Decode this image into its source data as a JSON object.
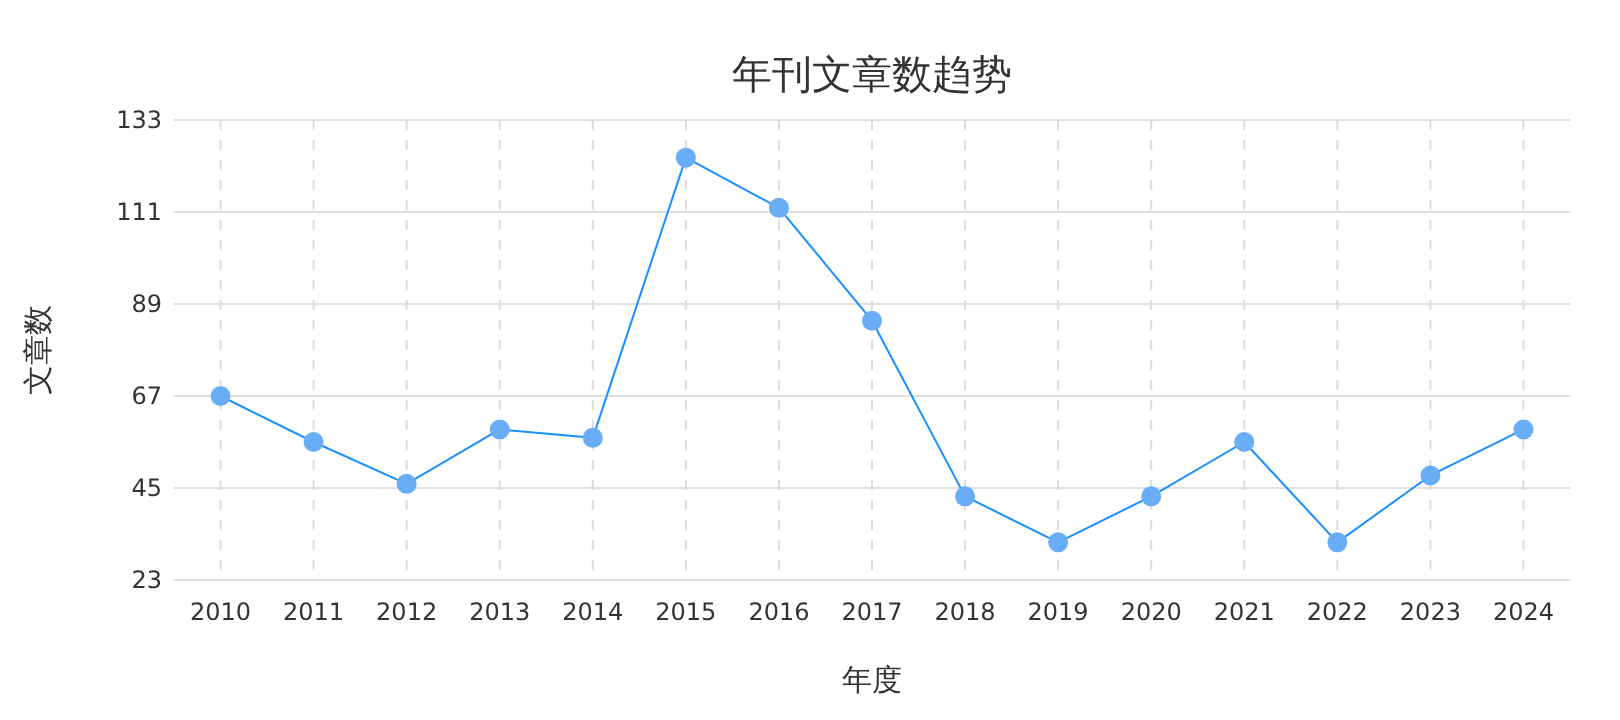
{
  "chart_data": {
    "type": "line",
    "title": "年刊文章数趋势",
    "xlabel": "年度",
    "ylabel": "文章数",
    "categories": [
      "2010",
      "2011",
      "2012",
      "2013",
      "2014",
      "2015",
      "2016",
      "2017",
      "2018",
      "2019",
      "2020",
      "2021",
      "2022",
      "2023",
      "2024"
    ],
    "series": [
      {
        "color": "#1890ff",
        "values": [
          67,
          56,
          46,
          59,
          57,
          124,
          112,
          85,
          43,
          32,
          43,
          56,
          32,
          48,
          59
        ]
      }
    ],
    "ylim": [
      23,
      133
    ],
    "yticks": [
      23,
      45,
      67,
      89,
      111,
      133
    ],
    "grid": true,
    "marker": "circle",
    "line_style": "solid"
  }
}
